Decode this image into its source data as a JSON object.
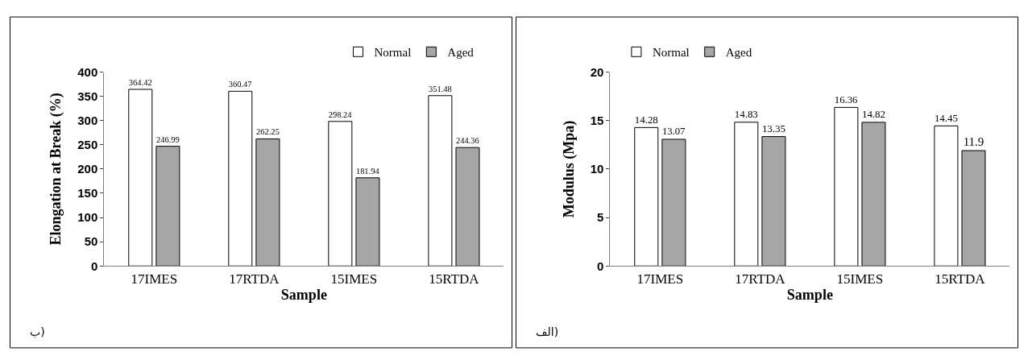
{
  "chart_data": [
    {
      "type": "bar",
      "xlabel": "Sample",
      "ylabel": "Elongation at Break (%)",
      "categories": [
        "17IMES",
        "17RTDA",
        "15IMES",
        "15RTDA"
      ],
      "series": [
        {
          "name": "Normal",
          "color": "#ffffff",
          "values": [
            364.42,
            360.47,
            298.24,
            351.48
          ]
        },
        {
          "name": "Aged",
          "color": "#a6a6a6",
          "values": [
            246.99,
            262.25,
            181.94,
            244.36
          ]
        }
      ],
      "ylim": [
        0,
        400
      ],
      "yticks": [
        0,
        50,
        100,
        150,
        200,
        250,
        300,
        350,
        400
      ],
      "data_labels": true,
      "legend": "top right",
      "grid": false,
      "annotations": [
        "ب)"
      ]
    },
    {
      "type": "bar",
      "xlabel": "Sample",
      "ylabel": "Modulus (Mpa)",
      "categories": [
        "17IMES",
        "17RTDA",
        "15IMES",
        "15RTDA"
      ],
      "series": [
        {
          "name": "Normal",
          "color": "#ffffff",
          "values": [
            14.28,
            14.83,
            16.36,
            14.45
          ]
        },
        {
          "name": "Aged",
          "color": "#a6a6a6",
          "values": [
            13.07,
            13.35,
            14.82,
            11.9
          ]
        }
      ],
      "ylim": [
        0,
        20
      ],
      "yticks": [
        0,
        5,
        10,
        15,
        20
      ],
      "data_labels": true,
      "legend": "top left",
      "grid": false,
      "annotations": [
        "الف)"
      ]
    }
  ]
}
